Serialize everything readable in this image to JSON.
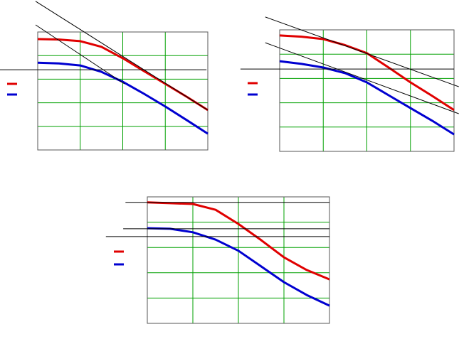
{
  "chart_data": [
    {
      "type": "line",
      "grid": true,
      "grid_color": "#00a000",
      "xlim": [
        0,
        4
      ],
      "ylim": [
        0,
        5
      ],
      "xticks": [
        0,
        1,
        2,
        3,
        4
      ],
      "yticks": [
        0,
        1,
        2,
        3,
        4,
        5
      ],
      "series": [
        {
          "color": "#e00000",
          "x": [
            0,
            0.5,
            1,
            1.5,
            2,
            2.5,
            3,
            3.5,
            4
          ],
          "values": [
            4.7,
            4.68,
            4.61,
            4.37,
            3.89,
            3.34,
            2.8,
            2.26,
            1.69
          ]
        },
        {
          "color": "#0000d0",
          "x": [
            0,
            0.5,
            1,
            1.5,
            2,
            2.5,
            3,
            3.5,
            4
          ],
          "values": [
            3.7,
            3.67,
            3.58,
            3.31,
            2.89,
            2.38,
            1.84,
            1.27,
            0.69
          ]
        },
        {
          "color": "#000000",
          "x": [
            -0.05,
            4
          ],
          "values": [
            6.3,
            1.69
          ]
        },
        {
          "color": "#000000",
          "x": [
            -0.05,
            2.04
          ],
          "values": [
            5.3,
            2.8
          ]
        },
        {
          "color": "#000000",
          "x": [
            -0.89,
            3.97
          ],
          "values": [
            3.4,
            3.4
          ]
        }
      ]
    },
    {
      "type": "line",
      "grid": true,
      "grid_color": "#00a000",
      "xlim": [
        0,
        4
      ],
      "ylim": [
        0,
        5
      ],
      "xticks": [
        0,
        1,
        2,
        3,
        4
      ],
      "yticks": [
        0,
        1,
        2,
        3,
        4,
        5
      ],
      "series": [
        {
          "color": "#e00000",
          "x": [
            0,
            0.5,
            1,
            1.5,
            2,
            2.5,
            3,
            3.5,
            4
          ],
          "values": [
            4.77,
            4.72,
            4.62,
            4.37,
            4.04,
            3.45,
            2.84,
            2.28,
            1.7
          ]
        },
        {
          "color": "#0000d0",
          "x": [
            0,
            0.5,
            1,
            1.5,
            2,
            2.5,
            3,
            3.5,
            4
          ],
          "values": [
            3.71,
            3.6,
            3.45,
            3.22,
            2.84,
            2.31,
            1.78,
            1.26,
            0.7
          ]
        },
        {
          "color": "#000000",
          "x": [
            -0.33,
            4.11
          ],
          "values": [
            5.53,
            2.66
          ]
        },
        {
          "color": "#000000",
          "x": [
            -0.33,
            4.11
          ],
          "values": [
            4.47,
            1.55
          ]
        },
        {
          "color": "#000000",
          "x": [
            -0.9,
            4
          ],
          "values": [
            3.39,
            3.39
          ]
        }
      ]
    },
    {
      "type": "line",
      "grid": true,
      "grid_color": "#00a000",
      "xlim": [
        0,
        4
      ],
      "ylim": [
        0,
        5
      ],
      "xticks": [
        0,
        1,
        2,
        3,
        4
      ],
      "yticks": [
        0,
        1,
        2,
        3,
        4,
        5
      ],
      "series": [
        {
          "color": "#e00000",
          "x": [
            0,
            0.5,
            1,
            1.5,
            2,
            2.5,
            3,
            3.5,
            4
          ],
          "values": [
            4.78,
            4.75,
            4.72,
            4.49,
            3.93,
            3.29,
            2.61,
            2.11,
            1.74
          ]
        },
        {
          "color": "#0000d0",
          "x": [
            0,
            0.5,
            1,
            1.5,
            2,
            2.5,
            3,
            3.5,
            4
          ],
          "values": [
            3.76,
            3.74,
            3.6,
            3.31,
            2.87,
            2.25,
            1.63,
            1.12,
            0.7
          ]
        },
        {
          "color": "#000000",
          "x": [
            -0.48,
            4
          ],
          "values": [
            4.78,
            4.78
          ]
        },
        {
          "color": "#000000",
          "x": [
            -0.53,
            4
          ],
          "values": [
            3.74,
            3.74
          ]
        },
        {
          "color": "#000000",
          "x": [
            -0.91,
            4
          ],
          "values": [
            3.43,
            3.43
          ]
        }
      ]
    }
  ]
}
